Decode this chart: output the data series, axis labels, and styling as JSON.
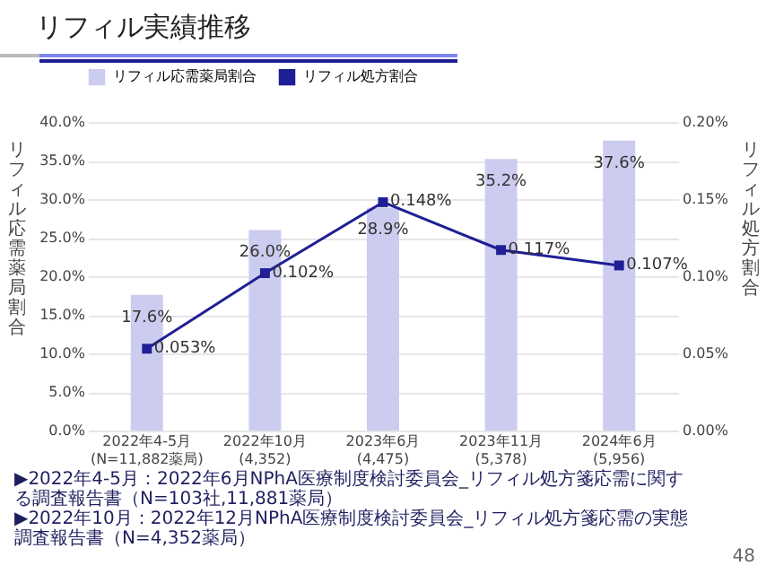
{
  "chart_data": {
    "type": "bar",
    "title": "リフィル実績推移",
    "categories": [
      "2022年4-5月\n(N=11,882薬局)",
      "2022年10月\n(4,352)",
      "2023年6月\n(4,475)",
      "2023年11月\n(5,378)",
      "2024年6月\n(5,956)"
    ],
    "series": [
      {
        "name": "リフィル応需薬局割合",
        "type": "bar",
        "color": "#ccccf0",
        "values": [
          17.6,
          26.0,
          28.9,
          35.2,
          37.6
        ],
        "value_labels": [
          "17.6%",
          "26.0%",
          "28.9%",
          "35.2%",
          "37.6%"
        ]
      },
      {
        "name": "リフィル処方割合",
        "type": "line",
        "axis": "y2",
        "color": "#1f1f96",
        "marker": "square",
        "values": [
          0.053,
          0.102,
          0.148,
          0.117,
          0.107
        ],
        "value_labels": [
          "0.053%",
          "0.102%",
          "0.148%",
          "0.117%",
          "0.107%"
        ]
      }
    ],
    "ylabel": "リフィル応需薬局割合",
    "y2label": "リフィル処方割合",
    "ylim": [
      0,
      40
    ],
    "yticks": [
      {
        "value": 0,
        "label": "0.0%"
      },
      {
        "value": 5,
        "label": "5.0%"
      },
      {
        "value": 10,
        "label": "10.0%"
      },
      {
        "value": 15,
        "label": "15.0%"
      },
      {
        "value": 20,
        "label": "20.0%"
      },
      {
        "value": 25,
        "label": "25.0%"
      },
      {
        "value": 30,
        "label": "30.0%"
      },
      {
        "value": 35,
        "label": "35.0%"
      },
      {
        "value": 40,
        "label": "40.0%"
      }
    ],
    "y2lim": [
      0,
      0.2
    ],
    "y2ticks": [
      {
        "value": 0,
        "label": "0.00%"
      },
      {
        "value": 0.05,
        "label": "0.05%"
      },
      {
        "value": 0.1,
        "label": "0.10%"
      },
      {
        "value": 0.15,
        "label": "0.15%"
      },
      {
        "value": 0.2,
        "label": "0.20%"
      }
    ],
    "grid": "y",
    "legend": "top",
    "annotations": [
      "▶2022年4-5月：2022年6月NPhA医療制度検討委員会_リフィル処方箋応需に関する調査報告書（N=103社,11,881薬局）",
      "▶2022年10月：2022年12月NPhA医療制度検討委員会_リフィル処方箋応需の実態調査報告書（N=4,352薬局）",
      "48"
    ]
  }
}
